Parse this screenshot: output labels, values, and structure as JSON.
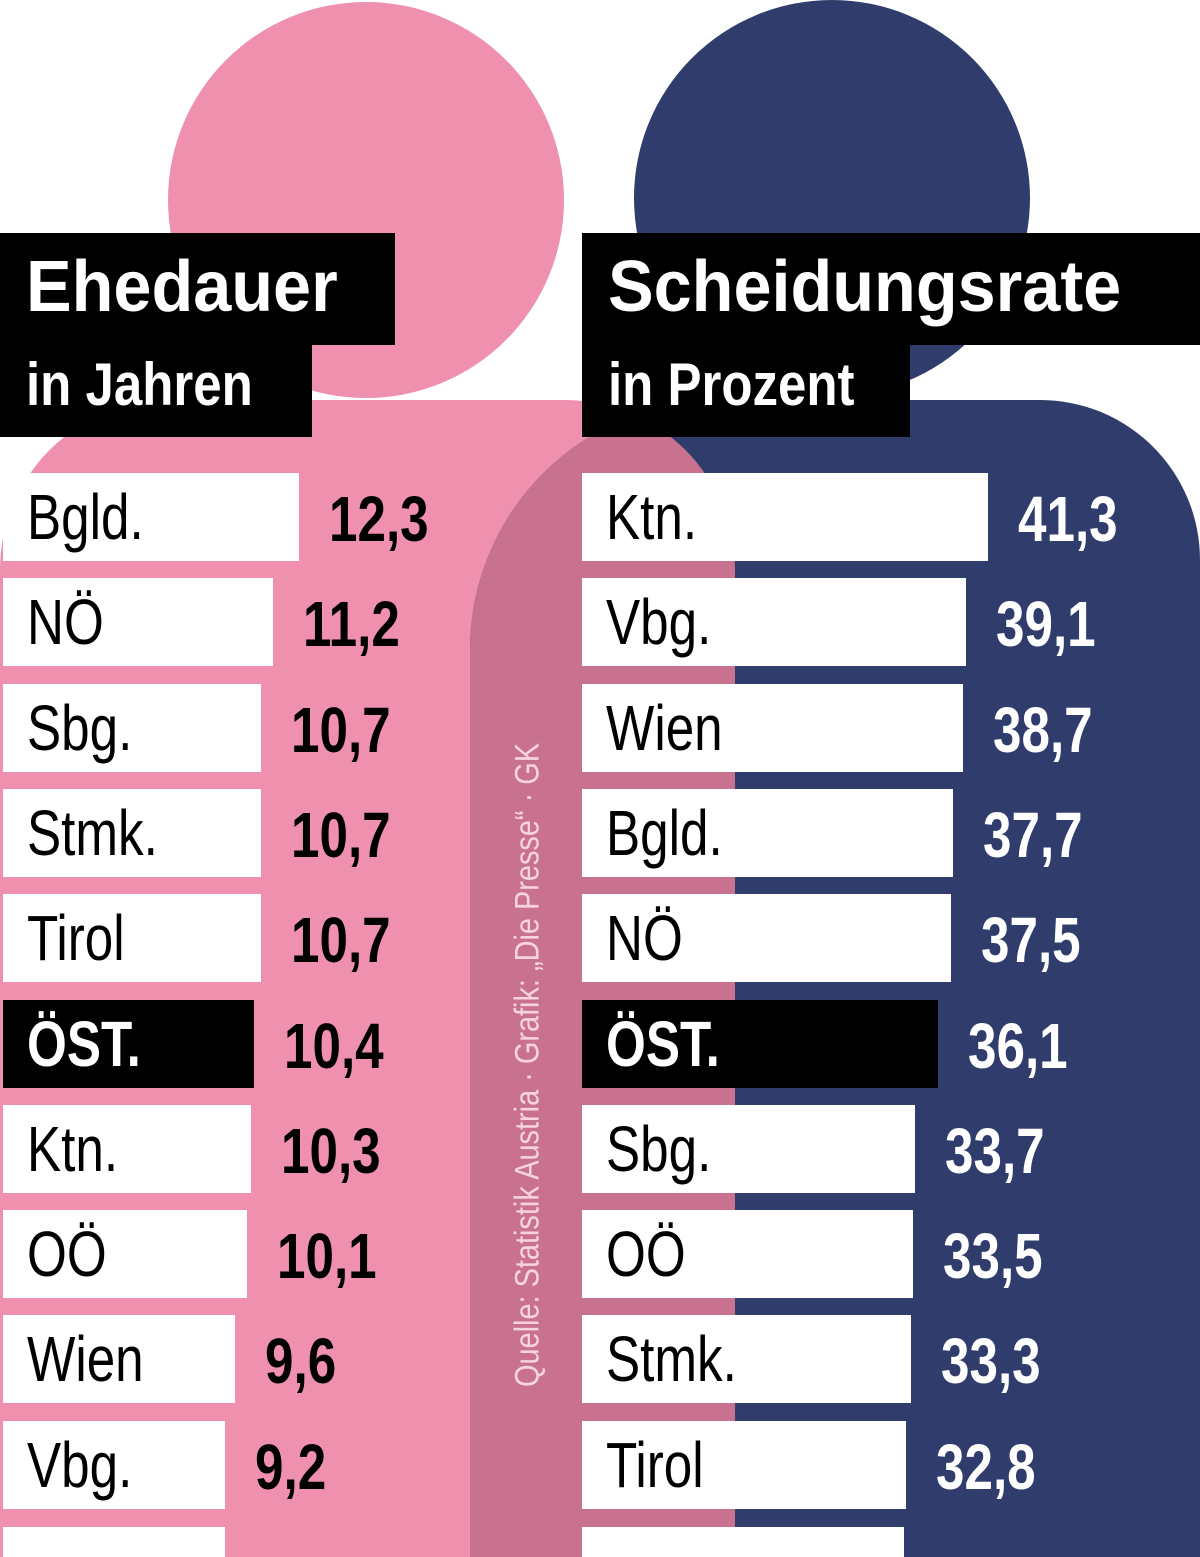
{
  "colors": {
    "female": "#ee90ae",
    "male": "#2f3c6c",
    "overlap": "#c9728f"
  },
  "left": {
    "title": "Ehedauer",
    "subtitle": "in Jahren"
  },
  "right": {
    "title": "Scheidungsrate",
    "subtitle": "in Prozent"
  },
  "source": "Quelle: Statistik Austria · Grafik: „Die Presse“ · GK",
  "chart_data": [
    {
      "type": "bar",
      "title": "Ehedauer",
      "subtitle": "in Jahren",
      "categories": [
        "Bgld.",
        "NÖ",
        "Sbg.",
        "Stmk.",
        "Tirol",
        "ÖST.",
        "Ktn.",
        "OÖ",
        "Wien",
        "Vbg."
      ],
      "values": [
        12.3,
        11.2,
        10.7,
        10.7,
        10.7,
        10.4,
        10.3,
        10.1,
        9.6,
        9.2
      ],
      "labels": [
        "12,3",
        "11,2",
        "10,7",
        "10,7",
        "10,7",
        "10,4",
        "10,3",
        "10,1",
        "9,6",
        "9,2"
      ],
      "highlight": "ÖST."
    },
    {
      "type": "bar",
      "title": "Scheidungsrate",
      "subtitle": "in Prozent",
      "categories": [
        "Ktn.",
        "Vbg.",
        "Wien",
        "Bgld.",
        "NÖ",
        "ÖST.",
        "Sbg.",
        "OÖ",
        "Stmk.",
        "Tirol"
      ],
      "values": [
        41.3,
        39.1,
        38.7,
        37.7,
        37.5,
        36.1,
        33.7,
        33.5,
        33.3,
        32.8
      ],
      "labels": [
        "41,3",
        "39,1",
        "38,7",
        "37,7",
        "37,5",
        "36,1",
        "33,7",
        "33,5",
        "33,3",
        "32,8"
      ],
      "highlight": "ÖST."
    }
  ]
}
